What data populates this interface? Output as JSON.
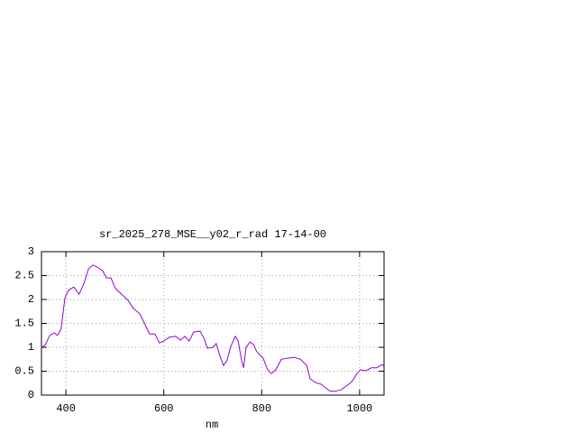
{
  "chart_data": {
    "type": "line",
    "title": "sr_2025_278_MSE__y02_r_rad 17-14-00",
    "x_label": "nm",
    "xlim": [
      350,
      1050
    ],
    "ylim": [
      0,
      3
    ],
    "xticks": [
      400,
      600,
      800,
      1000
    ],
    "yticks": [
      0,
      0.5,
      1,
      1.5,
      2,
      2.5,
      3
    ],
    "grid": true,
    "series": [
      {
        "color": "#9400d3",
        "x": [
          350,
          357,
          367,
          376,
          383,
          390,
          398,
          405,
          416,
          427,
          437,
          446,
          455,
          464,
          475,
          483,
          492,
          501,
          514,
          527,
          538,
          551,
          560,
          571,
          582,
          591,
          600,
          611,
          624,
          634,
          643,
          652,
          661,
          674,
          682,
          689,
          700,
          707,
          715,
          722,
          729,
          737,
          746,
          752,
          759,
          763,
          768,
          776,
          783,
          790,
          803,
          812,
          820,
          829,
          840,
          851,
          866,
          879,
          892,
          899,
          910,
          921,
          928,
          940,
          950,
          962,
          973,
          984,
          995,
          1002,
          1013,
          1024,
          1035,
          1046,
          1050
        ],
        "values": [
          1.0,
          1.04,
          1.25,
          1.3,
          1.25,
          1.38,
          2.04,
          2.19,
          2.26,
          2.11,
          2.34,
          2.64,
          2.72,
          2.68,
          2.6,
          2.45,
          2.45,
          2.23,
          2.11,
          1.98,
          1.81,
          1.7,
          1.51,
          1.28,
          1.28,
          1.09,
          1.13,
          1.21,
          1.23,
          1.15,
          1.23,
          1.13,
          1.32,
          1.34,
          1.19,
          0.98,
          1.0,
          1.08,
          0.81,
          0.62,
          0.72,
          1.02,
          1.23,
          1.13,
          0.72,
          0.57,
          1.0,
          1.11,
          1.06,
          0.91,
          0.77,
          0.53,
          0.45,
          0.53,
          0.75,
          0.77,
          0.79,
          0.75,
          0.62,
          0.34,
          0.26,
          0.23,
          0.17,
          0.08,
          0.08,
          0.11,
          0.19,
          0.28,
          0.45,
          0.53,
          0.51,
          0.57,
          0.57,
          0.64,
          0.6
        ]
      }
    ]
  }
}
